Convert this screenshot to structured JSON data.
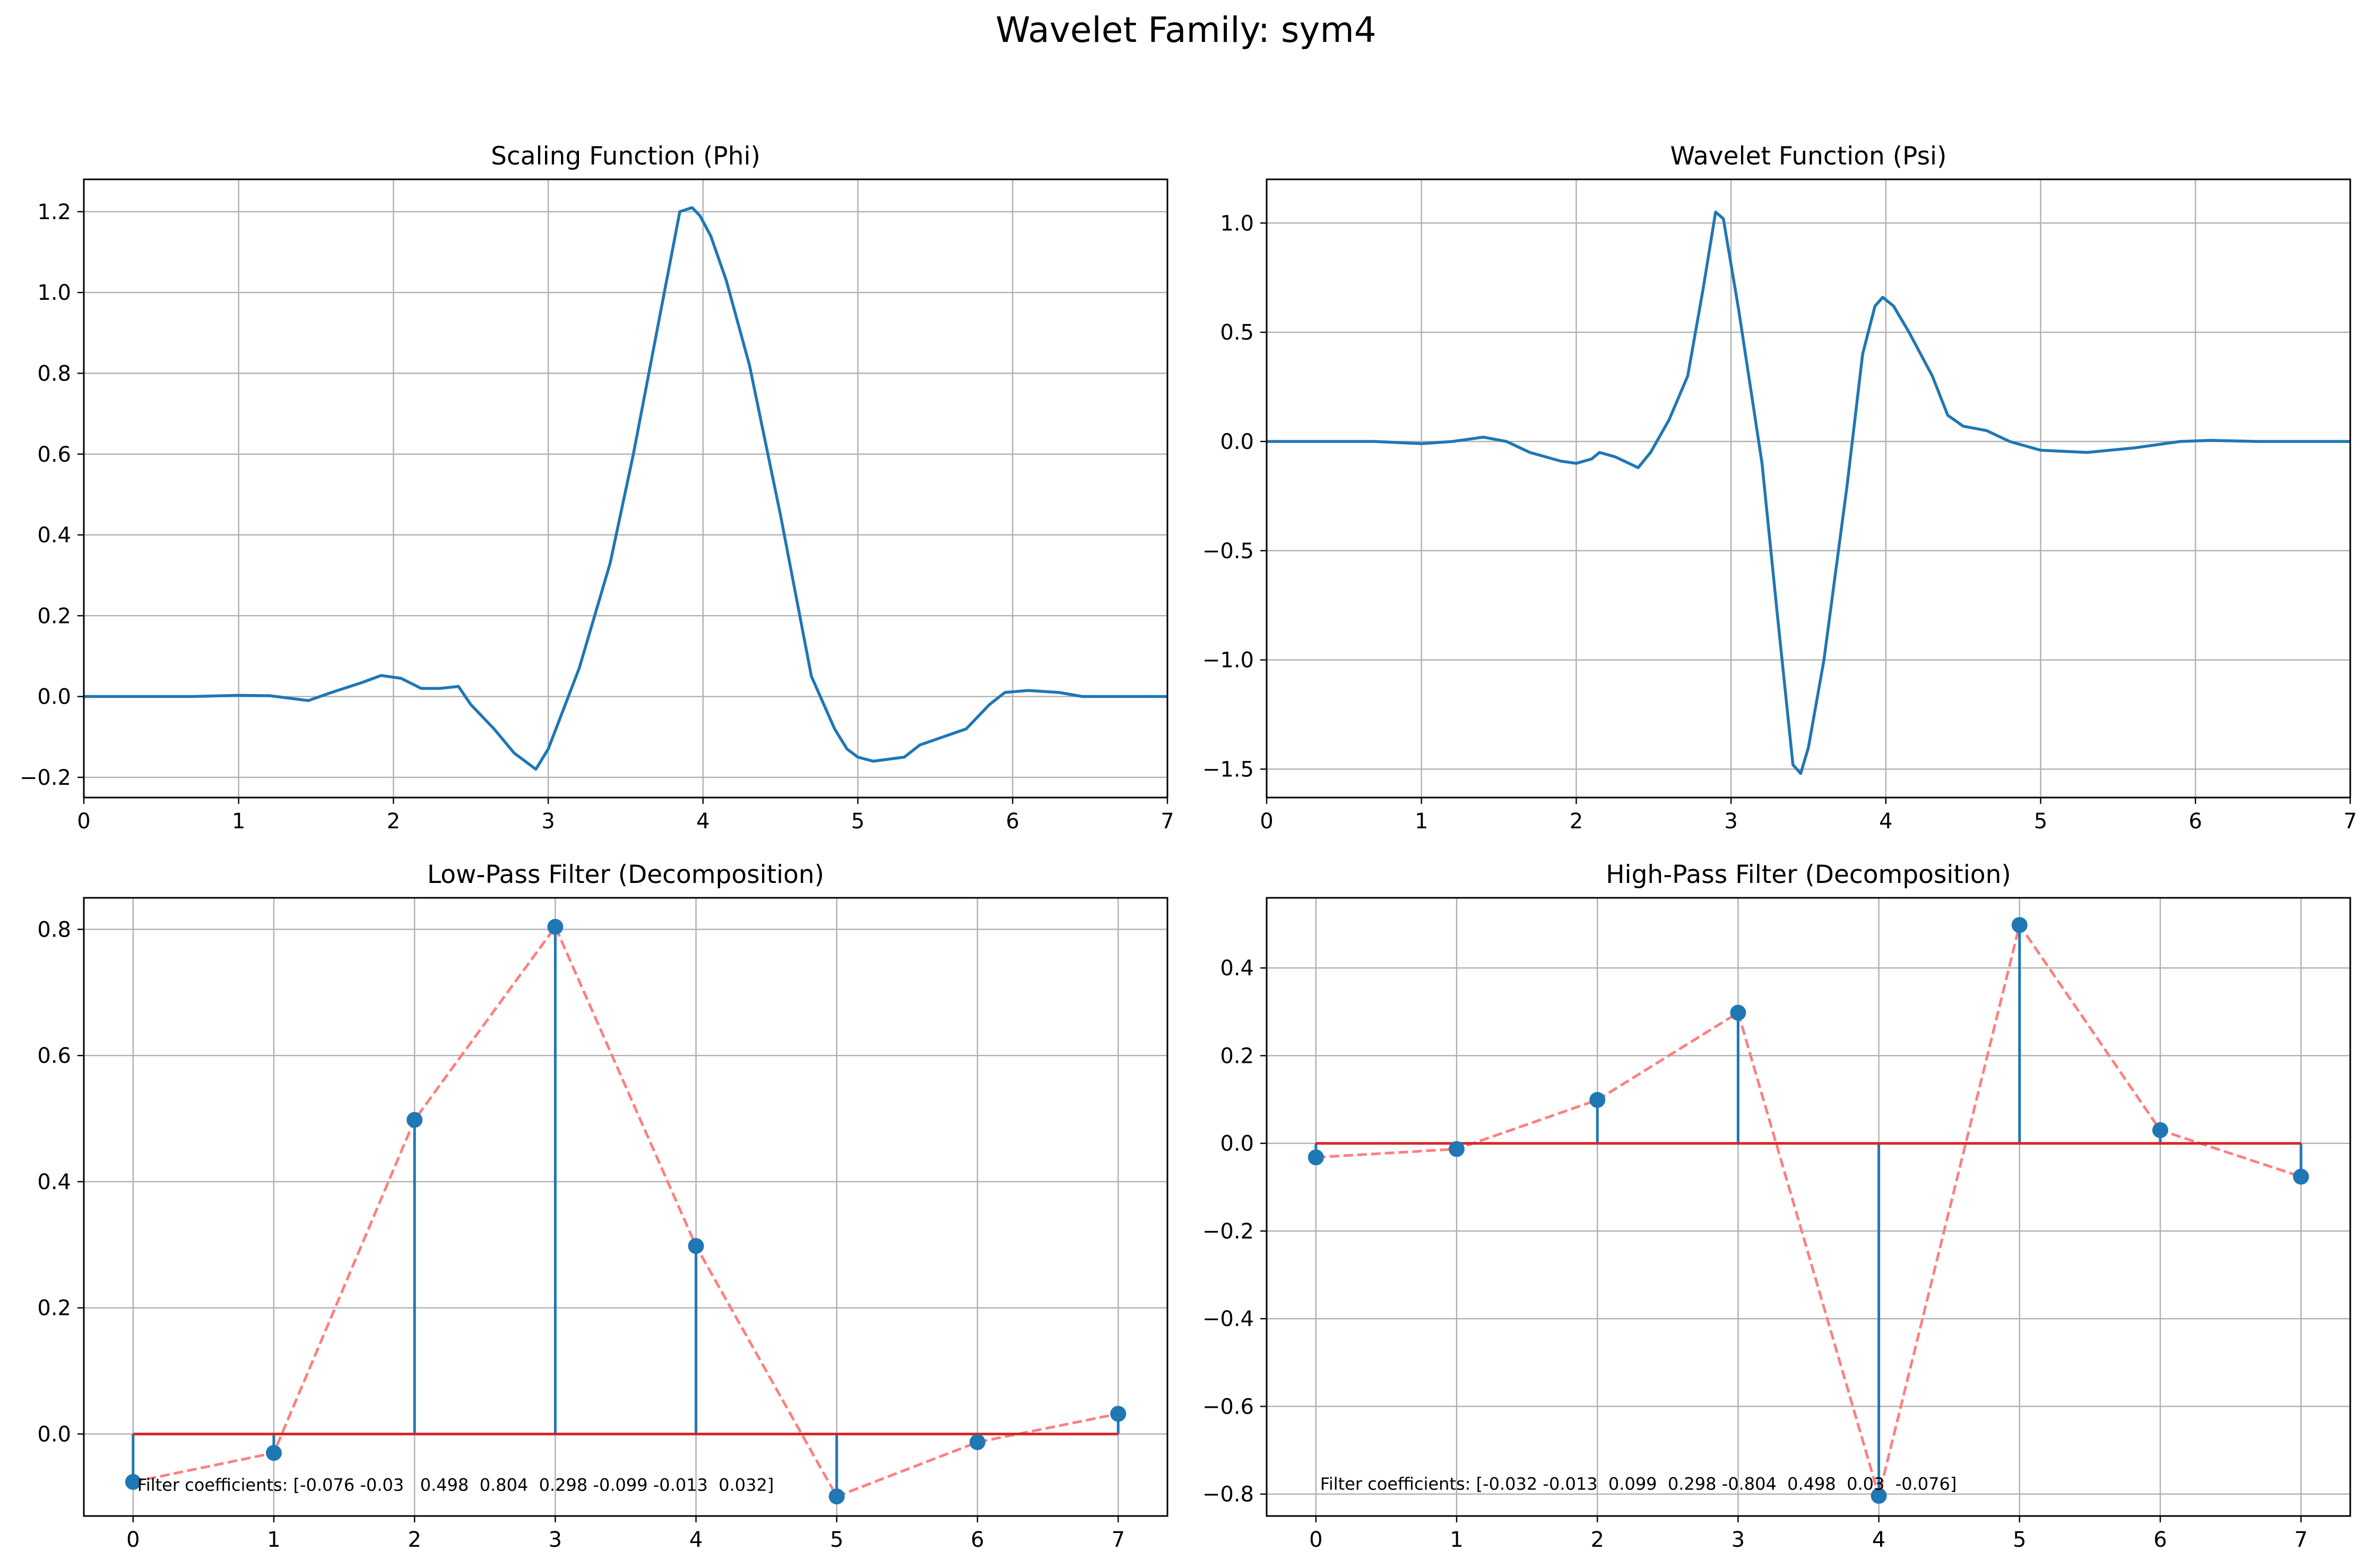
{
  "suptitle": "Wavelet Family: sym4",
  "colors": {
    "line": "#1f77b4",
    "baseline": "#d62728",
    "dashed": "#ff7f7f",
    "grid": "#b0b0b0"
  },
  "chart_data": [
    {
      "type": "line",
      "title": "Scaling Function (Phi)",
      "xlim": [
        0,
        7
      ],
      "ylim": [
        -0.25,
        1.28
      ],
      "xticks": [
        0,
        1,
        2,
        3,
        4,
        5,
        6,
        7
      ],
      "yticks": [
        -0.2,
        0.0,
        0.2,
        0.4,
        0.6,
        0.8,
        1.0,
        1.2
      ],
      "xtick_labels": [
        "0",
        "1",
        "2",
        "3",
        "4",
        "5",
        "6",
        "7"
      ],
      "ytick_labels": [
        "−0.2",
        "0.0",
        "0.2",
        "0.4",
        "0.6",
        "0.8",
        "1.0",
        "1.2"
      ],
      "grid": true,
      "x": [
        0,
        0.7,
        1.0,
        1.2,
        1.45,
        1.6,
        1.8,
        1.92,
        2.05,
        2.18,
        2.3,
        2.42,
        2.5,
        2.65,
        2.78,
        2.92,
        3.0,
        3.1,
        3.2,
        3.4,
        3.55,
        3.75,
        3.85,
        3.93,
        3.98,
        4.05,
        4.15,
        4.3,
        4.5,
        4.7,
        4.85,
        4.93,
        5.0,
        5.1,
        5.3,
        5.4,
        5.7,
        5.85,
        5.95,
        6.1,
        6.3,
        6.45,
        6.7,
        7.0
      ],
      "y": [
        0,
        0,
        0.003,
        0.002,
        -0.01,
        0.01,
        0.035,
        0.052,
        0.045,
        0.02,
        0.02,
        0.025,
        -0.02,
        -0.08,
        -0.14,
        -0.18,
        -0.13,
        -0.03,
        0.07,
        0.33,
        0.6,
        1.0,
        1.2,
        1.21,
        1.19,
        1.14,
        1.03,
        0.82,
        0.45,
        0.05,
        -0.08,
        -0.13,
        -0.15,
        -0.16,
        -0.15,
        -0.12,
        -0.08,
        -0.02,
        0.01,
        0.015,
        0.01,
        0.0,
        0.0,
        0.0
      ]
    },
    {
      "type": "line",
      "title": "Wavelet Function (Psi)",
      "xlim": [
        0,
        7
      ],
      "ylim": [
        -1.63,
        1.2
      ],
      "xticks": [
        0,
        1,
        2,
        3,
        4,
        5,
        6,
        7
      ],
      "yticks": [
        -1.5,
        -1.0,
        -0.5,
        0.0,
        0.5,
        1.0
      ],
      "xtick_labels": [
        "0",
        "1",
        "2",
        "3",
        "4",
        "5",
        "6",
        "7"
      ],
      "ytick_labels": [
        "−1.5",
        "−1.0",
        "−0.5",
        "0.0",
        "0.5",
        "1.0"
      ],
      "grid": true,
      "x": [
        0,
        0.7,
        1.0,
        1.2,
        1.4,
        1.55,
        1.7,
        1.9,
        2.0,
        2.1,
        2.15,
        2.25,
        2.4,
        2.48,
        2.6,
        2.72,
        2.82,
        2.9,
        2.95,
        3.05,
        3.2,
        3.3,
        3.4,
        3.45,
        3.5,
        3.6,
        3.75,
        3.85,
        3.93,
        3.98,
        4.05,
        4.15,
        4.3,
        4.4,
        4.5,
        4.65,
        4.8,
        5.0,
        5.3,
        5.6,
        5.9,
        6.1,
        6.4,
        7.0
      ],
      "y": [
        0,
        0,
        -0.01,
        0.0,
        0.02,
        0.0,
        -0.05,
        -0.09,
        -0.1,
        -0.08,
        -0.05,
        -0.07,
        -0.12,
        -0.05,
        0.1,
        0.3,
        0.7,
        1.05,
        1.02,
        0.6,
        -0.1,
        -0.8,
        -1.48,
        -1.52,
        -1.4,
        -1.0,
        -0.2,
        0.4,
        0.62,
        0.66,
        0.62,
        0.5,
        0.3,
        0.12,
        0.07,
        0.05,
        0.0,
        -0.04,
        -0.05,
        -0.03,
        0.0,
        0.005,
        0.0,
        0.0
      ]
    },
    {
      "type": "stem",
      "title": "Low-Pass Filter (Decomposition)",
      "xlim": [
        -0.35,
        7.35
      ],
      "ylim": [
        -0.13,
        0.85
      ],
      "xticks": [
        0,
        1,
        2,
        3,
        4,
        5,
        6,
        7
      ],
      "yticks": [
        0.0,
        0.2,
        0.4,
        0.6,
        0.8
      ],
      "xtick_labels": [
        "0",
        "1",
        "2",
        "3",
        "4",
        "5",
        "6",
        "7"
      ],
      "ytick_labels": [
        "0.0",
        "0.2",
        "0.4",
        "0.6",
        "0.8"
      ],
      "grid": true,
      "x": [
        0,
        1,
        2,
        3,
        4,
        5,
        6,
        7
      ],
      "y": [
        -0.076,
        -0.03,
        0.498,
        0.804,
        0.298,
        -0.099,
        -0.013,
        0.032
      ],
      "annotation": {
        "text": "Filter coefficients: [-0.076 -0.03   0.498  0.804  0.298 -0.099 -0.013  0.032]",
        "x": 0.03,
        "y": -0.09
      }
    },
    {
      "type": "stem",
      "title": "High-Pass Filter (Decomposition)",
      "xlim": [
        -0.35,
        7.35
      ],
      "ylim": [
        -0.85,
        0.56
      ],
      "xticks": [
        0,
        1,
        2,
        3,
        4,
        5,
        6,
        7
      ],
      "yticks": [
        -0.8,
        -0.6,
        -0.4,
        -0.2,
        0.0,
        0.2,
        0.4
      ],
      "xtick_labels": [
        "0",
        "1",
        "2",
        "3",
        "4",
        "5",
        "6",
        "7"
      ],
      "ytick_labels": [
        "−0.8",
        "−0.6",
        "−0.4",
        "−0.2",
        "0.0",
        "0.2",
        "0.4"
      ],
      "grid": true,
      "x": [
        0,
        1,
        2,
        3,
        4,
        5,
        6,
        7
      ],
      "y": [
        -0.032,
        -0.013,
        0.099,
        0.298,
        -0.804,
        0.498,
        0.03,
        -0.076
      ],
      "annotation": {
        "text": "Filter coefficients: [-0.032 -0.013  0.099  0.298 -0.804  0.498  0.03  -0.076]",
        "x": 0.03,
        "y": -0.79
      }
    }
  ]
}
